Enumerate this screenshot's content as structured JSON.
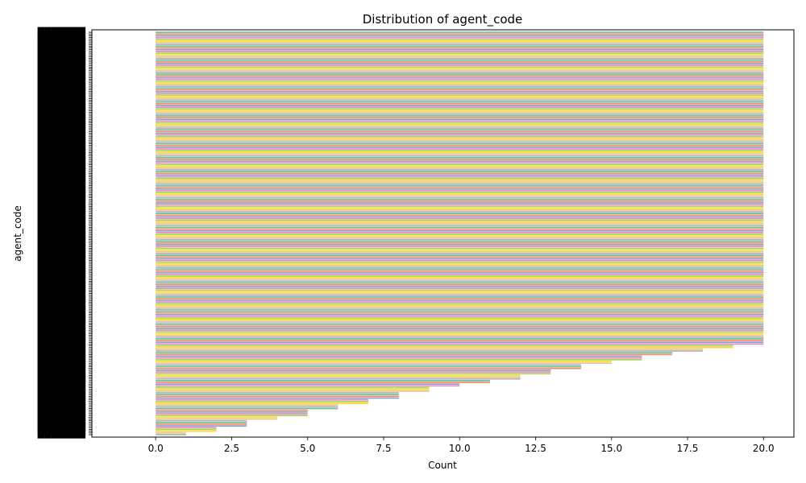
{
  "chart_data": {
    "type": "bar",
    "orientation": "horizontal",
    "title": "Distribution of agent_code",
    "xlabel": "Count",
    "ylabel": "agent_code",
    "xlim": [
      -2.1,
      21.0
    ],
    "x_ticks": [
      "0.0",
      "2.5",
      "5.0",
      "7.5",
      "10.0",
      "12.5",
      "15.0",
      "17.5",
      "20.0"
    ],
    "x_tick_values": [
      0,
      2.5,
      5,
      7.5,
      10,
      12.5,
      15,
      17.5,
      20
    ],
    "grid": false,
    "legend": "none",
    "category_label_text": "███████",
    "colors": [
      "#66c2a5",
      "#fc8d62",
      "#8da0cb",
      "#e78ac3",
      "#a6d854",
      "#ffd92f",
      "#e5c494",
      "#b3b3b3"
    ],
    "value_groups": [
      {
        "value": 20,
        "count": 180
      },
      {
        "value": 19,
        "count": 2
      },
      {
        "value": 18,
        "count": 2
      },
      {
        "value": 17,
        "count": 2
      },
      {
        "value": 16,
        "count": 3
      },
      {
        "value": 15,
        "count": 2
      },
      {
        "value": 14,
        "count": 3
      },
      {
        "value": 13,
        "count": 3
      },
      {
        "value": 12,
        "count": 3
      },
      {
        "value": 11,
        "count": 2
      },
      {
        "value": 10,
        "count": 2
      },
      {
        "value": 9,
        "count": 3
      },
      {
        "value": 8,
        "count": 4
      },
      {
        "value": 7,
        "count": 3
      },
      {
        "value": 6,
        "count": 3
      },
      {
        "value": 5,
        "count": 4
      },
      {
        "value": 4,
        "count": 2
      },
      {
        "value": 3,
        "count": 4
      },
      {
        "value": 2,
        "count": 3
      },
      {
        "value": 1,
        "count": 2
      }
    ]
  }
}
